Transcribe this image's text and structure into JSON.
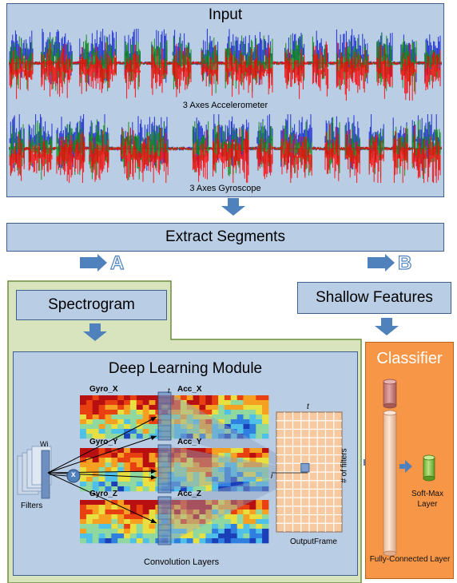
{
  "input": {
    "title": "Input",
    "accelerometer_label": "3 Axes Accelerometer",
    "gyroscope_label": "3 Axes Gyroscope"
  },
  "extract_segments": "Extract Segments",
  "branch_a": "A",
  "branch_b": "B",
  "spectrogram": "Spectrogram",
  "shallow_features": "Shallow Features",
  "deep_module": {
    "title": "Deep Learning Module",
    "gyro_x": "Gyro_X",
    "acc_x": "Acc_X",
    "gyro_y": "Gyro_Y",
    "acc_y": "Acc_Y",
    "gyro_z": "Gyro_Z",
    "acc_z": "Acc_Z",
    "wi": "Wi",
    "x_op": "x",
    "filters": "Filters",
    "t_marker": "t",
    "i_marker": "i",
    "output_t": "t",
    "num_filters": "# of filters",
    "output_frame": "OutputFrame",
    "conv_layers": "Convolution Layers"
  },
  "classifier": {
    "title": "Classifier",
    "softmax": "Soft-Max Layer",
    "fully_connected": "Fully-Connected Layer"
  },
  "colors": {
    "box_fill": "#b9cde5",
    "box_border": "#3d5f8a",
    "arrow": "#4f81bd",
    "green_panel": "#d7e4bd",
    "green_border": "#6b8e3c",
    "classifier_fill": "#f79646",
    "classifier_border": "#b5651d",
    "signal_red": "#ff0000",
    "signal_green": "#0a8a0a",
    "signal_blue": "#1020d0"
  }
}
